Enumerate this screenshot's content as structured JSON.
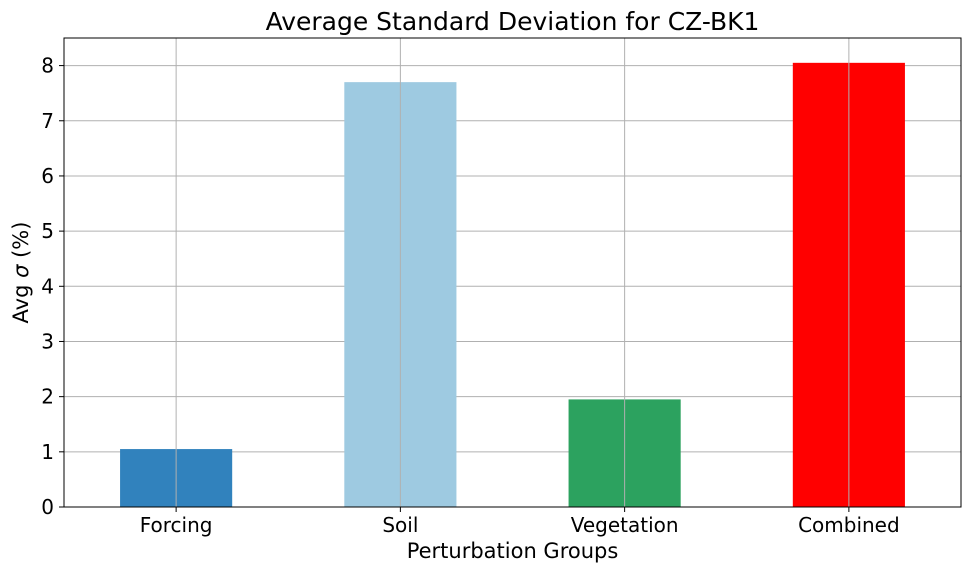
{
  "chart_data": {
    "type": "bar",
    "title": "Average Standard Deviation for CZ-BK1",
    "xlabel": "Perturbation Groups",
    "ylabel_prefix": "Avg ",
    "ylabel_symbol": "σ",
    "ylabel_suffix": " (%)",
    "categories": [
      "Forcing",
      "Soil",
      "Vegetation",
      "Combined"
    ],
    "values": [
      1.05,
      7.7,
      1.95,
      8.05
    ],
    "colors": [
      "#3182bd",
      "#9ecae1",
      "#2ca25f",
      "#ff0000"
    ],
    "ylim": [
      0,
      8.5
    ],
    "yticks": [
      "0",
      "1",
      "2",
      "3",
      "4",
      "5",
      "6",
      "7",
      "8"
    ],
    "grid": true,
    "legend": "none"
  }
}
